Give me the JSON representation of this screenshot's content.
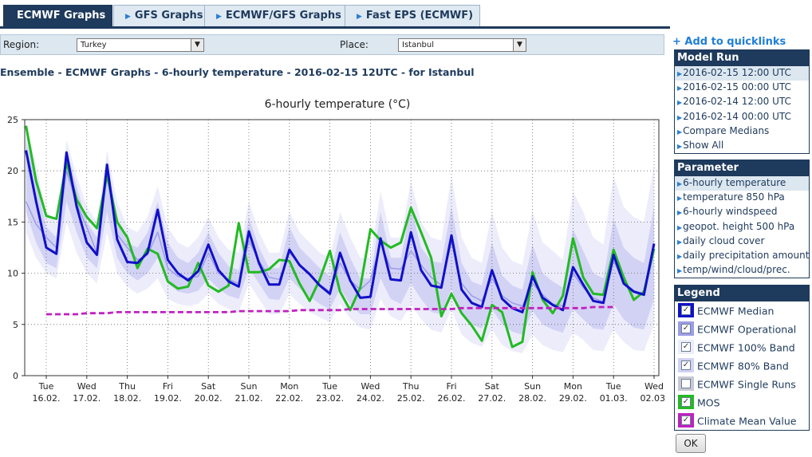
{
  "tabs": [
    {
      "label": "ECMWF Graphs",
      "active": true
    },
    {
      "label": "GFS Graphs",
      "active": false
    },
    {
      "label": "ECMWF/GFS Graphs",
      "active": false
    },
    {
      "label": "Fast EPS (ECMWF)",
      "active": false
    }
  ],
  "region": {
    "label": "Region:",
    "value": "Turkey"
  },
  "place": {
    "label": "Place:",
    "value": "Istanbul"
  },
  "page_title": "Ensemble - ECMWF Graphs - 6-hourly temperature - 2016-02-15 12UTC - for Istanbul",
  "quicklinks": "+ Add to quicklinks",
  "model_run": {
    "title": "Model Run",
    "items": [
      "2016-02-15 12:00 UTC",
      "2016-02-15 00:00 UTC",
      "2016-02-14 12:00 UTC",
      "2016-02-14 00:00 UTC",
      "Compare Medians",
      "Show All"
    ]
  },
  "parameter": {
    "title": "Parameter",
    "items": [
      "6-hourly temperature",
      "temperature 850 hPa",
      "6-hourly windspeed",
      "geopot. height 500 hPa",
      "daily cloud cover",
      "daily precipitation amount",
      "temp/wind/cloud/prec."
    ]
  },
  "legend_panel": {
    "title": "Legend",
    "items": [
      {
        "label": "ECMWF Median",
        "color": "#1010c8",
        "checked": true
      },
      {
        "label": "ECMWF Operational",
        "color": "#9c9ce6",
        "checked": true
      },
      {
        "label": "ECMWF 100% Band",
        "color": "#ececfb",
        "checked": true
      },
      {
        "label": "ECMWF 80% Band",
        "color": "#d2d2f5",
        "checked": true
      },
      {
        "label": "ECMWF Single Runs",
        "color": "#c8c8d4",
        "checked": false
      },
      {
        "label": "MOS",
        "color": "#22bb22",
        "checked": true
      },
      {
        "label": "Climate Mean Value",
        "color": "#c020c0",
        "checked": true
      }
    ],
    "ok_label": "OK"
  },
  "chart_data": {
    "type": "line",
    "title": "6-hourly temperature (°C)",
    "ylim": [
      0,
      25
    ],
    "yticks": [
      0,
      5,
      10,
      15,
      20,
      25
    ],
    "xlim": [
      0,
      62.4
    ],
    "day_labels": [
      {
        "day": "Tue",
        "date": "16.02."
      },
      {
        "day": "Wed",
        "date": "17.02."
      },
      {
        "day": "Thu",
        "date": "18.02."
      },
      {
        "day": "Fri",
        "date": "19.02."
      },
      {
        "day": "Sat",
        "date": "20.02."
      },
      {
        "day": "Sun",
        "date": "21.02."
      },
      {
        "day": "Mon",
        "date": "22.02."
      },
      {
        "day": "Tue",
        "date": "23.02."
      },
      {
        "day": "Wed",
        "date": "24.02."
      },
      {
        "day": "Thu",
        "date": "25.02."
      },
      {
        "day": "Fri",
        "date": "26.02."
      },
      {
        "day": "Sat",
        "date": "27.02."
      },
      {
        "day": "Sun",
        "date": "28.02."
      },
      {
        "day": "Mon",
        "date": "29.02."
      },
      {
        "day": "Tue",
        "date": "01.03."
      },
      {
        "day": "Wed",
        "date": "02.03."
      }
    ],
    "grid": true,
    "series": [
      {
        "name": "ECMWF Median",
        "color": "#1010c8",
        "values": [
          22,
          17,
          12.5,
          11.9,
          21.8,
          16.5,
          13,
          11.8,
          20.6,
          13.3,
          11.1,
          11,
          12,
          16.2,
          11.3,
          10,
          9.3,
          10.2,
          12.8,
          10.3,
          9.2,
          8.7,
          14.1,
          11,
          8.9,
          8.9,
          12.3,
          10.8,
          9.9,
          8.8,
          8,
          12,
          9.3,
          7.6,
          7.7,
          13.4,
          9.4,
          9.3,
          14,
          10.3,
          8.8,
          8.6,
          13.7,
          8.4,
          7.1,
          6.7,
          10.3,
          7.5,
          6.6,
          6.2,
          9.7,
          7.6,
          6.9,
          6.4,
          10.6,
          8.9,
          7.3,
          7.1,
          11.8,
          9,
          8.2,
          7.9,
          12.9
        ]
      },
      {
        "name": "ECMWF Operational",
        "color": "#9c9ce6",
        "values": [
          17,
          14.8,
          13.5,
          12.5,
          20,
          16.8,
          14.5,
          12,
          19.5,
          13.8,
          12.5,
          11.3,
          11.8,
          14,
          10.5,
          9.7,
          9.5,
          9.7,
          12,
          10,
          9.4,
          9,
          13.2,
          11.2,
          9.6,
          9.4,
          12,
          10.9,
          10,
          8.9,
          8.2,
          11,
          9.3,
          8.4,
          9.3,
          13,
          10.5,
          10.4,
          12.2,
          10.8,
          9.6,
          8.8,
          13,
          9,
          7.8,
          7.3,
          9.5,
          7.8,
          7.1,
          6.8,
          9,
          7.9,
          7,
          6.8,
          10,
          8.6,
          7.6,
          7.2,
          11.2,
          9.1,
          8.3,
          8,
          12.2
        ]
      },
      {
        "name": "MOS",
        "color": "#22bb22",
        "values": [
          24.4,
          19,
          15.6,
          15.3,
          20.8,
          17.2,
          15.5,
          14.4,
          19.6,
          15,
          13.5,
          10.5,
          12.4,
          11.9,
          9.2,
          8.5,
          8.7,
          11,
          8.8,
          8.2,
          8.8,
          14.9,
          10.1,
          10.1,
          10.4,
          11.3,
          11.2,
          9,
          7.3,
          9.4,
          12.2,
          8.2,
          6.4,
          8.6,
          14.3,
          13.2,
          12.5,
          13,
          16.4,
          14,
          11.5,
          5.8,
          8,
          6.1,
          4.9,
          3.4,
          6.9,
          6.2,
          2.8,
          3.3,
          10.1,
          7.4,
          6.1,
          7.8,
          13.4,
          9.6,
          8,
          7.9,
          12.3,
          9.6,
          7.4,
          8.2,
          12.4
        ]
      },
      {
        "name": "Climate Mean Value",
        "color": "#c020c0",
        "values": [
          6,
          6,
          6,
          6,
          6,
          6,
          6.1,
          6.1,
          6.1,
          6.2,
          6.2,
          6.2,
          6.2,
          6.2,
          6.2,
          6.2,
          6.2,
          6.2,
          6.2,
          6.2,
          6.2,
          6.3,
          6.3,
          6.3,
          6.3,
          6.3,
          6.3,
          6.4,
          6.4,
          6.4,
          6.4,
          6.4,
          6.5,
          6.5,
          6.5,
          6.5,
          6.5,
          6.5,
          6.5,
          6.5,
          6.5,
          6.5,
          6.5,
          6.6,
          6.6,
          6.6,
          6.6,
          6.6,
          6.6,
          6.6,
          6.6,
          6.6,
          6.6,
          6.6,
          6.6,
          6.6,
          6.7,
          6.7,
          6.7,
          6.7,
          6.7,
          6.7,
          6.7
        ]
      }
    ],
    "band_80": {
      "name": "ECMWF 80% Band",
      "color": "#d2d2f5",
      "low": [
        16,
        13,
        11,
        10.5,
        17,
        14,
        11.5,
        10.5,
        16,
        11.5,
        10,
        9.3,
        10,
        11.5,
        9,
        8.2,
        8,
        8.3,
        9.5,
        8.5,
        7.8,
        7.5,
        10.5,
        9,
        7.5,
        7.4,
        9.5,
        8.5,
        7.7,
        7,
        6.5,
        8.5,
        7,
        6,
        6,
        9.5,
        7.5,
        7,
        9,
        7.5,
        6.2,
        6,
        8.5,
        6,
        5,
        4.6,
        6.5,
        5,
        4.3,
        4,
        6.3,
        5,
        4.5,
        4.2,
        6.5,
        5.5,
        4.6,
        4.5,
        7,
        5.5,
        4.7,
        4.5,
        7.5
      ],
      "high": [
        23,
        19,
        14.5,
        13.5,
        22,
        18.5,
        15,
        13.5,
        21,
        15.5,
        13,
        12.5,
        14,
        17,
        13,
        11.5,
        11,
        12,
        14,
        12,
        10.7,
        10.3,
        15.5,
        12.5,
        10.5,
        10.5,
        14.5,
        12.5,
        11.5,
        10.5,
        9.7,
        14,
        11.5,
        9.5,
        9.5,
        16,
        11.5,
        11.5,
        16.5,
        12.5,
        11.2,
        11,
        16.5,
        11,
        9.2,
        8.8,
        13,
        9.8,
        8.8,
        8.4,
        12.8,
        10,
        9.2,
        8.6,
        14.3,
        12.2,
        10,
        9.5,
        15.3,
        12.5,
        11.5,
        11,
        16.5
      ]
    },
    "band_100": {
      "name": "ECMWF 100% Band",
      "color": "#ececfb",
      "low": [
        14,
        11.5,
        10,
        9.5,
        15,
        12,
        10,
        9,
        14,
        10,
        8.7,
        8,
        8.5,
        9.5,
        7.5,
        7,
        6.8,
        7,
        8,
        7,
        6.5,
        6.2,
        9,
        7.5,
        6,
        6,
        8,
        7,
        6.2,
        5.7,
        5.2,
        7,
        5.6,
        4.7,
        4.5,
        7.5,
        5.8,
        5.3,
        7,
        5.5,
        4.5,
        4.2,
        6.5,
        4,
        3.2,
        2.8,
        4.5,
        3,
        2.4,
        2.2,
        4,
        3,
        2.5,
        2.3,
        4.2,
        3.5,
        2.5,
        2.4,
        4.5,
        3.3,
        2.5,
        2.4,
        5
      ],
      "high": [
        24.5,
        20.5,
        16,
        15,
        23,
        19.5,
        16.5,
        15,
        22,
        17,
        14.5,
        14,
        15.5,
        18.5,
        14.5,
        13,
        12.5,
        13.5,
        15.5,
        13.5,
        12.3,
        12,
        17,
        14,
        12,
        12,
        16,
        14,
        13,
        12,
        11.5,
        16,
        13.5,
        11.5,
        11.5,
        18,
        13.5,
        13.5,
        19,
        15,
        13.5,
        13.2,
        19.5,
        13.5,
        11.5,
        11,
        16,
        12.5,
        11.2,
        10.8,
        16,
        13,
        12.2,
        11.3,
        18,
        16,
        13.5,
        12.8,
        19.5,
        16.5,
        15.5,
        15,
        20.5
      ]
    }
  }
}
